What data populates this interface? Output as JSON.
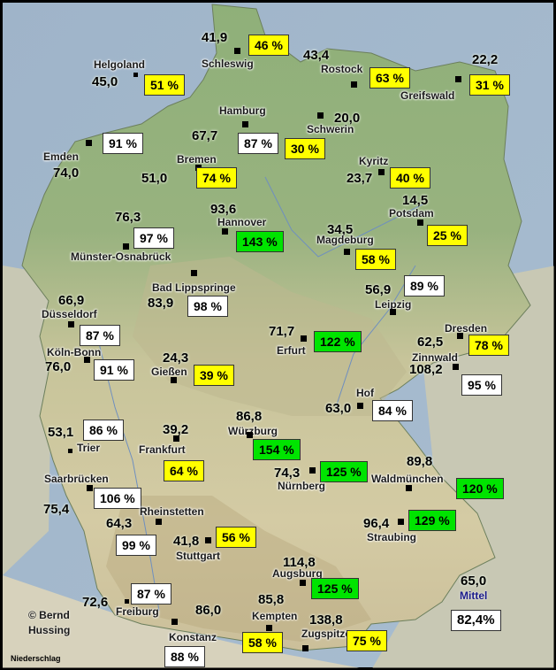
{
  "map": {
    "copyright": "© Bernd\nHussing",
    "footer": "Niederschlag",
    "mittel_label": "Mittel",
    "mittel_value": "65,0",
    "mittel_pct": "82,4%"
  },
  "stations": [
    {
      "id": "schleswig",
      "name": "Schleswig",
      "value": "41,9",
      "pct": "46 %",
      "color": "yellow"
    },
    {
      "id": "helgoland",
      "name": "Helgoland",
      "value": "45,0",
      "pct": "51 %",
      "color": "yellow"
    },
    {
      "id": "rostock",
      "name": "Rostock",
      "value": "43,4",
      "pct": "63 %",
      "color": "yellow"
    },
    {
      "id": "greifswald",
      "name": "Greifswald",
      "value": "22,2",
      "pct": "31 %",
      "color": "yellow"
    },
    {
      "id": "emden",
      "name": "Emden",
      "value": "74,0",
      "pct": "91 %",
      "color": "white"
    },
    {
      "id": "hamburg",
      "name": "Hamburg",
      "value": "67,7",
      "pct": "87 %",
      "color": "white"
    },
    {
      "id": "schwerin",
      "name": "Schwerin",
      "value": "20,0",
      "pct": "30 %",
      "color": "yellow"
    },
    {
      "id": "bremen",
      "name": "Bremen",
      "value": "51,0",
      "pct": "74 %",
      "color": "yellow"
    },
    {
      "id": "kyritz",
      "name": "Kyritz",
      "value": "23,7",
      "pct": "40 %",
      "color": "yellow"
    },
    {
      "id": "potsdam",
      "name": "Potsdam",
      "value": "14,5",
      "pct": "25 %",
      "color": "yellow"
    },
    {
      "id": "hannover",
      "name": "Hannover",
      "value": "93,6",
      "pct": "143 %",
      "color": "green"
    },
    {
      "id": "osnabrueck",
      "name": "Münster-Osnabrück",
      "value": "76,3",
      "pct": "97 %",
      "color": "white"
    },
    {
      "id": "magdeburg",
      "name": "Magdeburg",
      "value": "34,5",
      "pct": "58 %",
      "color": "yellow"
    },
    {
      "id": "lippspringe",
      "name": "Bad Lippspringe",
      "value": "83,9",
      "pct": "98 %",
      "color": "white"
    },
    {
      "id": "leipzig",
      "name": "Leipzig",
      "value": "56,9",
      "pct": "89 %",
      "color": "white"
    },
    {
      "id": "duesseldorf",
      "name": "Düsseldorf",
      "value": "66,9",
      "pct": "87 %",
      "color": "white"
    },
    {
      "id": "erfurt",
      "name": "Erfurt",
      "value": "71,7",
      "pct": "122 %",
      "color": "green"
    },
    {
      "id": "dresden",
      "name": "Dresden",
      "value": "62,5",
      "pct": "78 %",
      "color": "yellow"
    },
    {
      "id": "koelnbonn",
      "name": "Köln-Bonn",
      "value": "76,0",
      "pct": "91 %",
      "color": "white"
    },
    {
      "id": "giessen",
      "name": "Gießen",
      "value": "24,3",
      "pct": "39 %",
      "color": "yellow"
    },
    {
      "id": "zinnwald",
      "name": "Zinnwald",
      "value": "108,2",
      "pct": "95 %",
      "color": "white"
    },
    {
      "id": "hof",
      "name": "Hof",
      "value": "63,0",
      "pct": "84 %",
      "color": "white"
    },
    {
      "id": "trier",
      "name": "Trier",
      "value": "53,1",
      "pct": "86 %",
      "color": "white"
    },
    {
      "id": "frankfurt",
      "name": "Frankfurt",
      "value": "39,2",
      "pct": "64 %",
      "color": "yellow"
    },
    {
      "id": "wuerzburg",
      "name": "Würzburg",
      "value": "86,8",
      "pct": "154 %",
      "color": "green"
    },
    {
      "id": "nuernberg",
      "name": "Nürnberg",
      "value": "74,3",
      "pct": "125 %",
      "color": "green"
    },
    {
      "id": "waldmuenchen",
      "name": "Waldmünchen",
      "value": "89,8",
      "pct": "120 %",
      "color": "green"
    },
    {
      "id": "saarbruecken",
      "name": "Saarbrücken",
      "value": "75,4",
      "pct": "106 %",
      "color": "white"
    },
    {
      "id": "rheinstetten",
      "name": "Rheinstetten",
      "value": "64,3",
      "pct": "99 %",
      "color": "white"
    },
    {
      "id": "stuttgart",
      "name": "Stuttgart",
      "value": "41,8",
      "pct": "56 %",
      "color": "yellow"
    },
    {
      "id": "straubing",
      "name": "Straubing",
      "value": "96,4",
      "pct": "129 %",
      "color": "green"
    },
    {
      "id": "augsburg",
      "name": "Augsburg",
      "value": "114,8",
      "pct": "125 %",
      "color": "green"
    },
    {
      "id": "freiburg",
      "name": "Freiburg",
      "value": "72,6",
      "pct": "87 %",
      "color": "white"
    },
    {
      "id": "kempten",
      "name": "Kempten",
      "value": "85,8",
      "pct": "58 %",
      "color": "yellow"
    },
    {
      "id": "zugspitze",
      "name": "Zugspitze",
      "value": "138,8",
      "pct": "75 %",
      "color": "yellow"
    },
    {
      "id": "konstanz",
      "name": "Konstanz",
      "value": "86,0",
      "pct": "88 %",
      "color": "white"
    }
  ]
}
